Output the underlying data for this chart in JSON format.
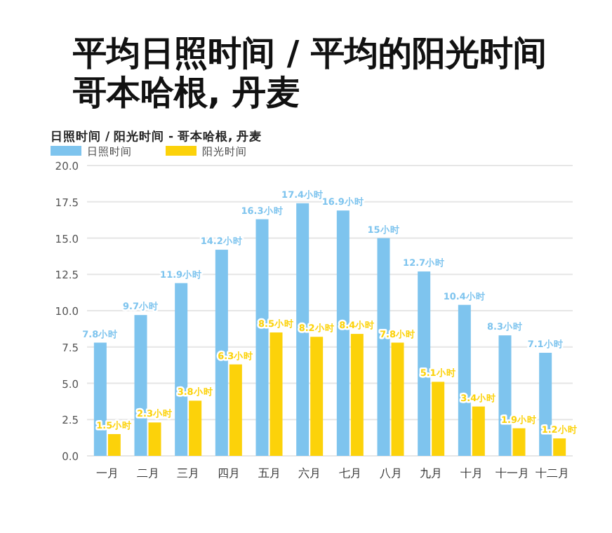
{
  "chart_data": {
    "type": "bar",
    "title": "平均日照时间 / 平均的阳光时间哥本哈根, 丹麦",
    "subtitle": "日照时间 / 阳光时间 - 哥本哈根, 丹麦",
    "categories": [
      "一月",
      "二月",
      "三月",
      "四月",
      "五月",
      "六月",
      "七月",
      "八月",
      "九月",
      "十月",
      "十一月",
      "十二月"
    ],
    "series": [
      {
        "name": "日照时间",
        "color": "#7ec4ee",
        "values": [
          7.8,
          9.7,
          11.9,
          14.2,
          16.3,
          17.4,
          16.9,
          15,
          12.7,
          10.4,
          8.3,
          7.1
        ],
        "value_labels": [
          "7.8小时",
          "9.7小时",
          "11.9小时",
          "14.2小时",
          "16.3小时",
          "17.4小时",
          "16.9小时",
          "15小时",
          "12.7小时",
          "10.4小时",
          "8.3小时",
          "7.1小时"
        ]
      },
      {
        "name": "阳光时间",
        "color": "#fcd20a",
        "values": [
          1.5,
          2.3,
          3.8,
          6.3,
          8.5,
          8.2,
          8.4,
          7.8,
          5.1,
          3.4,
          1.9,
          1.2
        ],
        "value_labels": [
          "1.5小时",
          "2.3小时",
          "3.8小时",
          "6.3小时",
          "8.5小时",
          "8.2小时",
          "8.4小时",
          "7.8小时",
          "5.1小时",
          "3.4小时",
          "1.9小时",
          "1.2小时"
        ]
      }
    ],
    "ylim": [
      0,
      20
    ],
    "yticks": [
      {
        "value": 0,
        "label": "0.0"
      },
      2.5,
      {
        "value": 5,
        "label": "5.0"
      },
      7.5,
      {
        "value": 10,
        "label": "10.0"
      },
      12.5,
      {
        "value": 15,
        "label": "15.0"
      },
      17.5,
      {
        "value": 20,
        "label": "20.0"
      }
    ],
    "grid": "y",
    "legend": "top left"
  }
}
